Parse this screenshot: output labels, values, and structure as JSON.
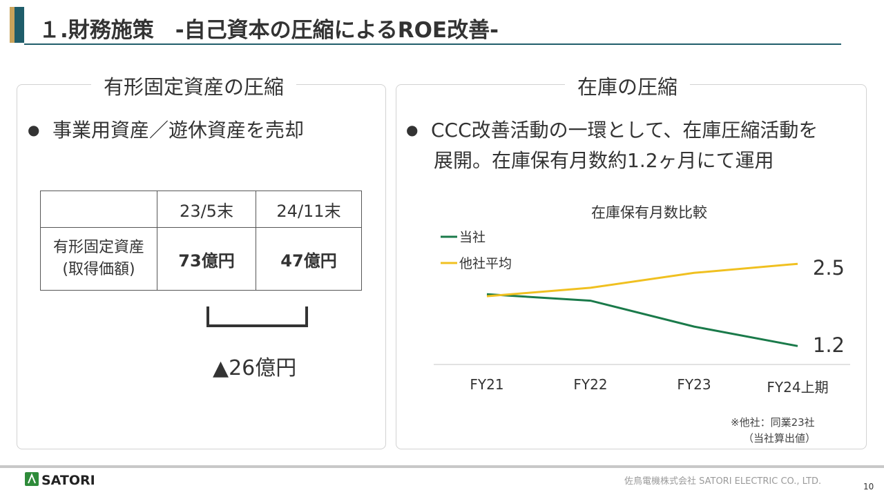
{
  "title": "１.財務施策　-自己資本の圧縮によるROE改善-",
  "left_panel": {
    "heading": "有形固定資産の圧縮",
    "bullet": "事業用資産／遊休資産を売却",
    "table": {
      "col1": "23/5末",
      "col2": "24/11末",
      "row_label_line1": "有形固定資産",
      "row_label_line2": "(取得価額)",
      "val1": "73億円",
      "val2": "47億円"
    },
    "reduction": "▲26億円"
  },
  "right_panel": {
    "heading": "在庫の圧縮",
    "bullet_line1": "CCC改善活動の一環として、在庫圧縮活動を",
    "bullet_line2": "展開。在庫保有月数約1.2ヶ月にて運用",
    "footnote_line1": "※他社：同業23社",
    "footnote_line2": "（当社算出値）"
  },
  "chart_data": {
    "type": "line",
    "title": "在庫保有月数比較",
    "categories": [
      "FY21",
      "FY22",
      "FY23",
      "FY24上期"
    ],
    "series": [
      {
        "name": "当社",
        "color": "#1a7a4a",
        "values": [
          2.0,
          1.9,
          1.5,
          1.2
        ]
      },
      {
        "name": "他社平均",
        "color": "#f0c020",
        "values": [
          1.97,
          2.1,
          2.33,
          2.47
        ]
      }
    ],
    "end_labels": [
      "1.2",
      "2.5"
    ],
    "ylim": [
      1.0,
      2.6
    ],
    "grid": false,
    "legend_position": "top-left"
  },
  "footer": {
    "logo_text": "SATORI",
    "company": "佐鳥電機株式会社  SATORI ELECTRIC CO., LTD.",
    "page": "10"
  },
  "colors": {
    "accent_teal": "#1f5d6a",
    "accent_gold": "#c9a35b",
    "logo_green": "#2e8b3a"
  }
}
